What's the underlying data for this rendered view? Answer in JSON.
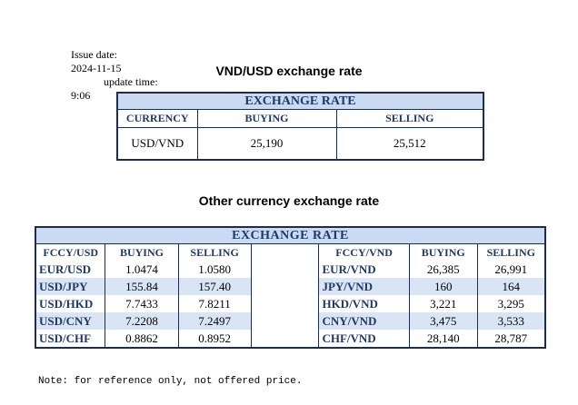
{
  "issue": {
    "issue_label": "Issue date:",
    "issue_value": "2024-11-15",
    "update_label": "update time:",
    "update_value": "9:06"
  },
  "section1": {
    "title": "VND/USD exchange rate",
    "table_header": "EXCHANGE RATE",
    "columns": [
      "CURRENCY",
      "BUYING",
      "SELLING"
    ],
    "row": {
      "currency": "USD/VND",
      "buying": "25,190",
      "selling": "25,512"
    }
  },
  "section2": {
    "title": "Other currency exchange rate",
    "table_header": "EXCHANGE  RATE",
    "left_columns": [
      "FCCY/USD",
      "BUYING",
      "SELLING"
    ],
    "right_columns": [
      "FCCY/VND",
      "BUYING",
      "SELLING"
    ],
    "rows": [
      {
        "left_pair": "EUR/USD",
        "left_buy": "1.0474",
        "left_sell": "1.0580",
        "right_pair": "EUR/VND",
        "right_buy": "26,385",
        "right_sell": "26,991"
      },
      {
        "left_pair": "USD/JPY",
        "left_buy": "155.84",
        "left_sell": "157.40",
        "right_pair": "JPY/VND",
        "right_buy": "160",
        "right_sell": "164"
      },
      {
        "left_pair": "USD/HKD",
        "left_buy": "7.7433",
        "left_sell": "7.8211",
        "right_pair": "HKD/VND",
        "right_buy": "3,221",
        "right_sell": "3,295"
      },
      {
        "left_pair": "USD/CNY",
        "left_buy": "7.2208",
        "left_sell": "7.2497",
        "right_pair": "CNY/VND",
        "right_buy": "3,475",
        "right_sell": "3,533"
      },
      {
        "left_pair": "USD/CHF",
        "left_buy": "0.8862",
        "left_sell": "0.8952",
        "right_pair": "CHF/VND",
        "right_buy": "28,140",
        "right_sell": "28,787"
      }
    ]
  },
  "note": "Note: for reference only, not offered price."
}
